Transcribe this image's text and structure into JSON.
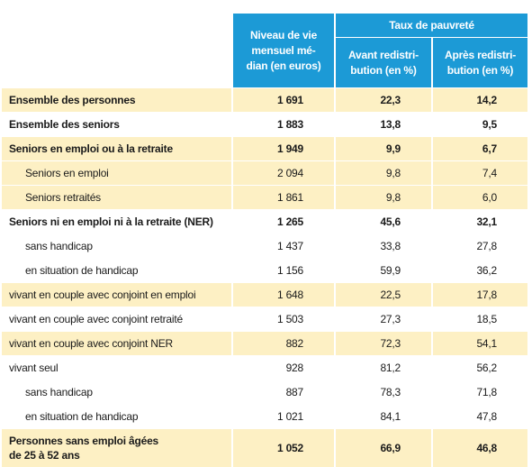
{
  "table": {
    "header": {
      "level": "Niveau de vie\nmensuel mé-\ndian (en euros)",
      "group": "Taux de pauvreté",
      "before": "Avant redistri-\nbution (en %)",
      "after": "Après redistri-\nbution (en %)"
    },
    "rows": [
      [
        "Ensemble des personnes",
        "1 691",
        "22,3",
        "14,2"
      ],
      [
        "Ensemble des seniors",
        "1 883",
        "13,8",
        "9,5"
      ],
      [
        "Seniors en emploi ou à la retraite",
        "1 949",
        "9,9",
        "6,7"
      ],
      [
        "Seniors en emploi",
        "2 094",
        "9,8",
        "7,4"
      ],
      [
        "Seniors retraités",
        "1 861",
        "9,8",
        "6,0"
      ],
      [
        "Seniors ni en emploi ni à la retraite (NER)",
        "1 265",
        "45,6",
        "32,1"
      ],
      [
        "sans handicap",
        "1 437",
        "33,8",
        "27,8"
      ],
      [
        "en situation de handicap",
        "1 156",
        "59,9",
        "36,2"
      ],
      [
        "vivant en couple avec conjoint en emploi",
        "1 648",
        "22,5",
        "17,8"
      ],
      [
        "vivant en couple avec conjoint retraité",
        "1 503",
        "27,3",
        "18,5"
      ],
      [
        "vivant en couple avec conjoint NER",
        "882",
        "72,3",
        "54,1"
      ],
      [
        "vivant seul",
        "928",
        "81,2",
        "56,2"
      ],
      [
        "sans handicap",
        "887",
        "78,3",
        "71,8"
      ],
      [
        "en situation de handicap",
        "1 021",
        "84,1",
        "47,8"
      ],
      [
        "Personnes sans emploi âgées\nde 25 à 52 ans",
        "1 052",
        "66,9",
        "46,8"
      ]
    ]
  }
}
